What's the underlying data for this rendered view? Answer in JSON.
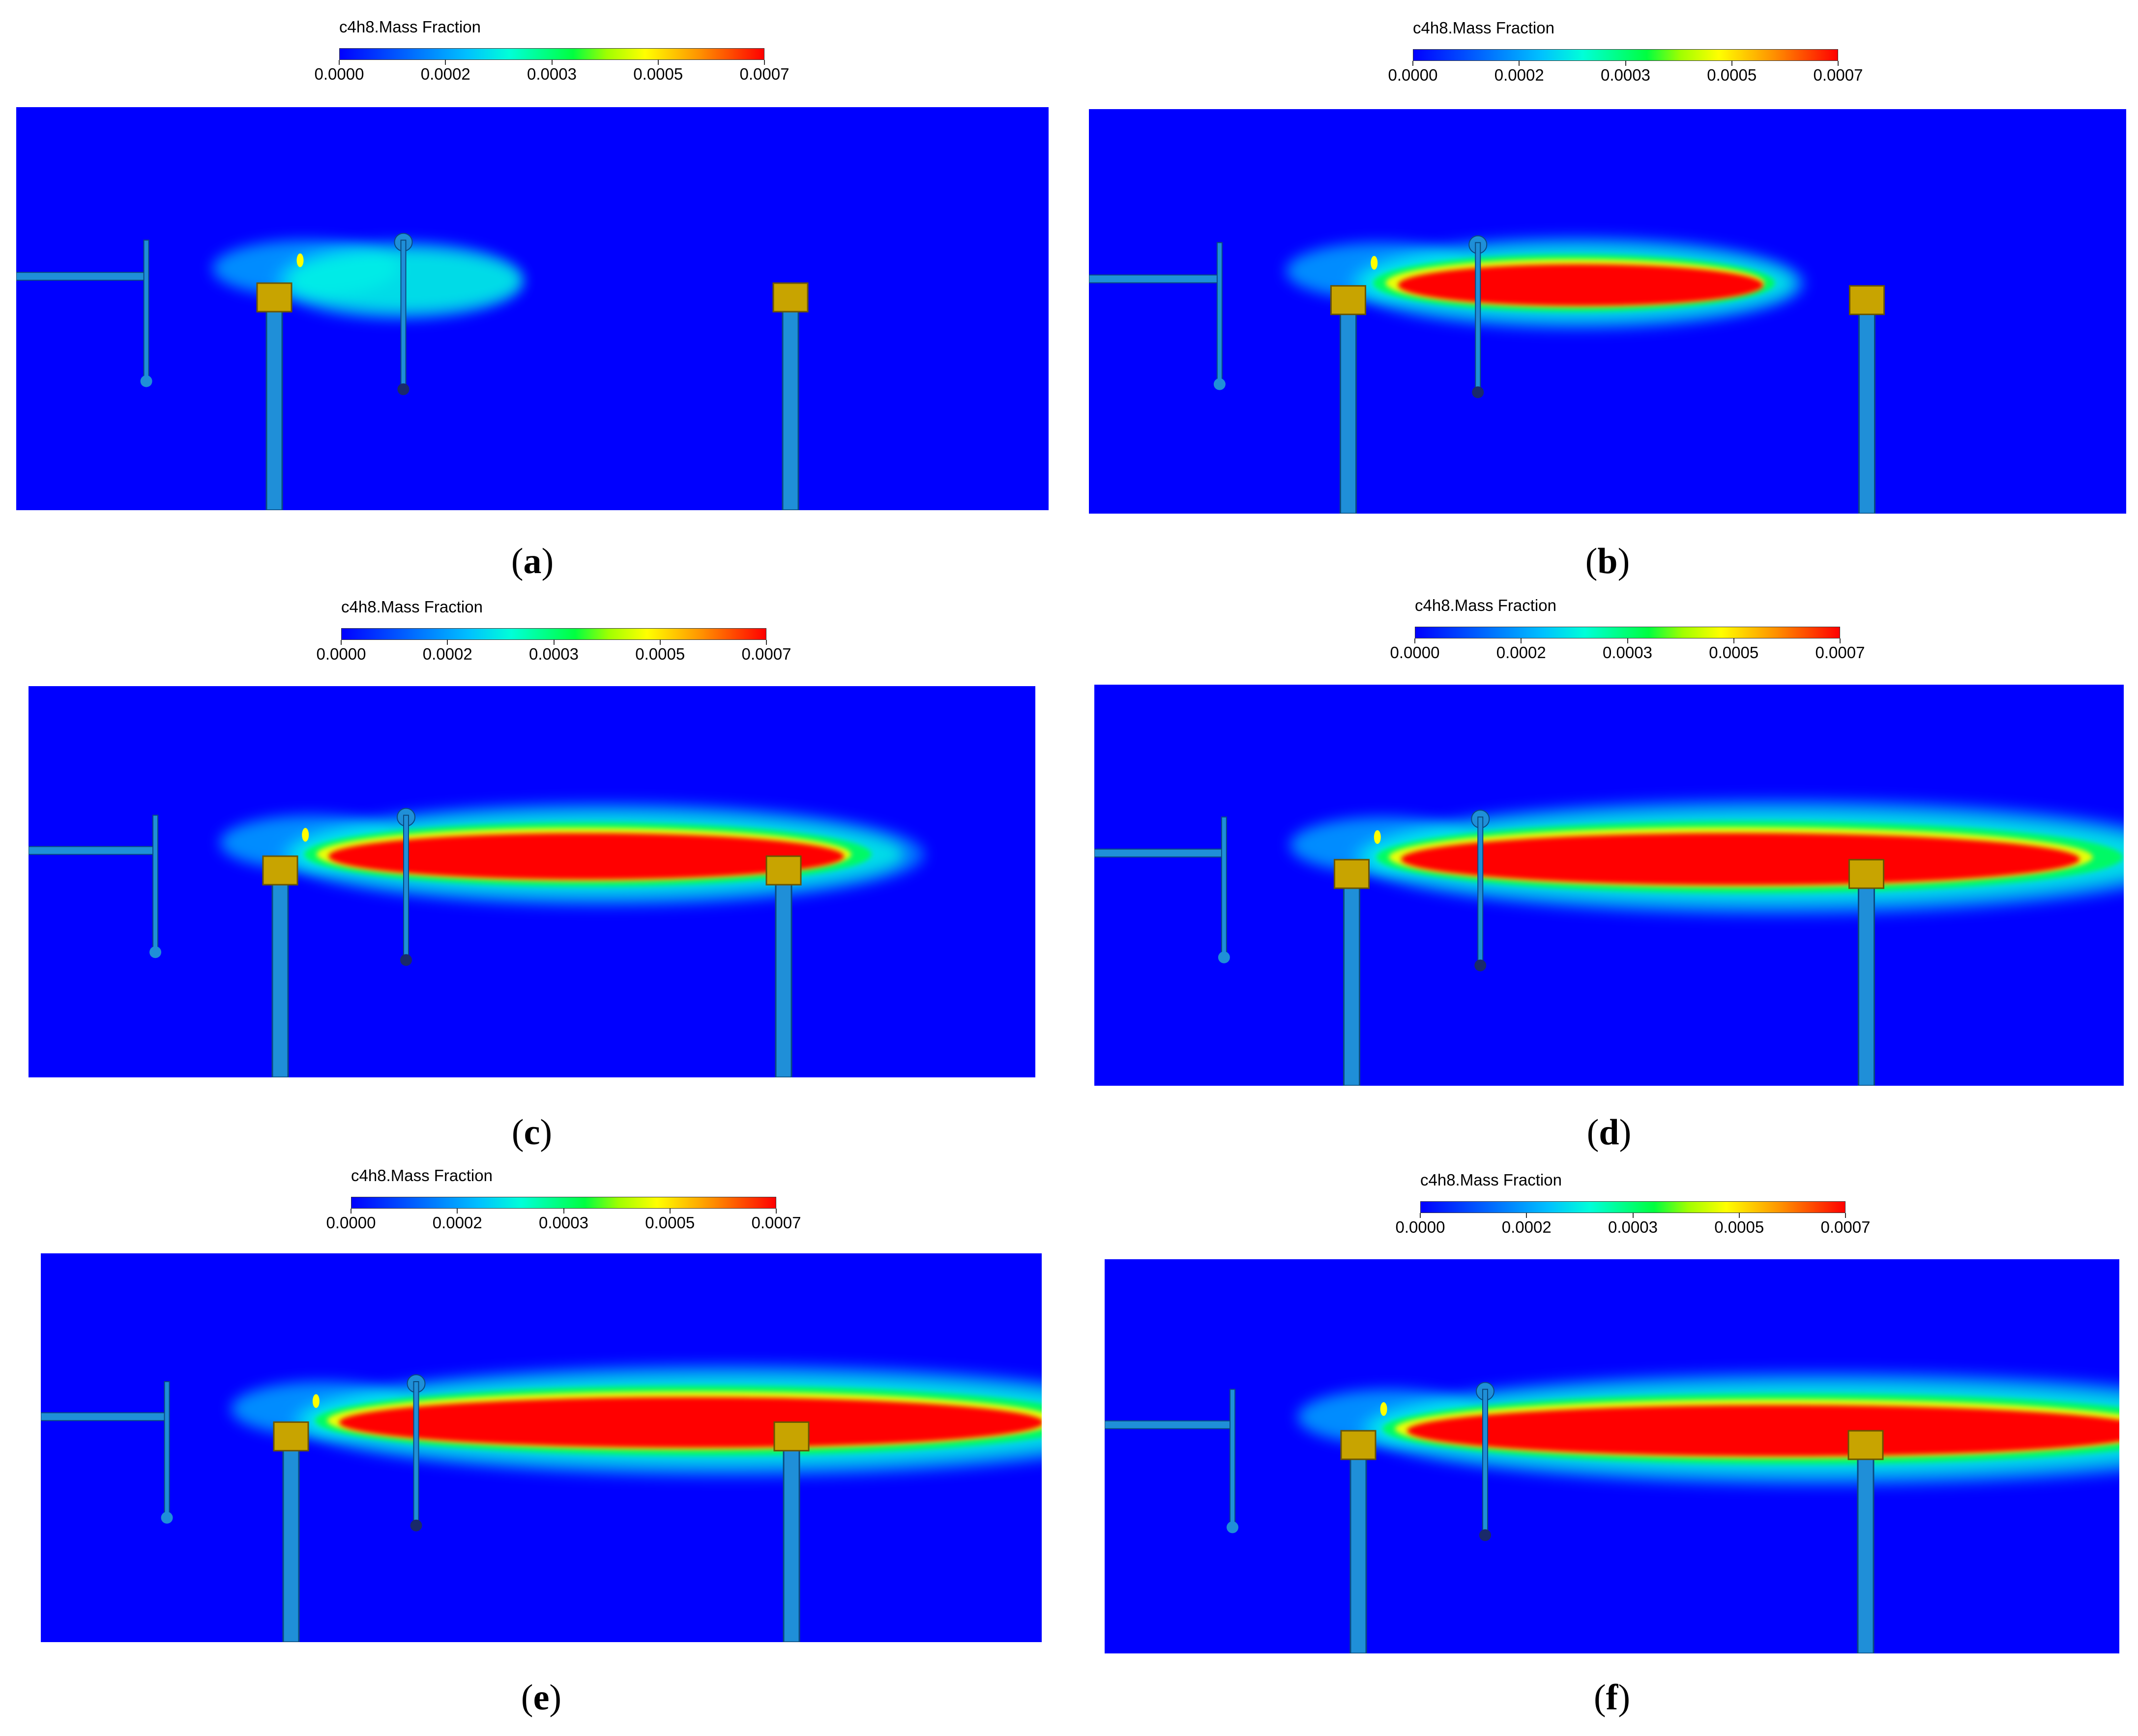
{
  "colorbar": {
    "title": "c4h8.Mass Fraction",
    "ticks": [
      "0.0000",
      "0.0002",
      "0.0003",
      "0.0005",
      "0.0007"
    ]
  },
  "colors": {
    "background": "#0000ff",
    "pipe": "#1f8fd8",
    "nozzle": "#c8a400",
    "high": "#ff0000"
  },
  "panels": [
    {
      "label": "a",
      "plume_extent": 0.15
    },
    {
      "label": "b",
      "plume_extent": 0.4
    },
    {
      "label": "c",
      "plume_extent": 0.65
    },
    {
      "label": "d",
      "plume_extent": 0.88
    },
    {
      "label": "e",
      "plume_extent": 0.95
    },
    {
      "label": "f",
      "plume_extent": 1.0
    }
  ]
}
